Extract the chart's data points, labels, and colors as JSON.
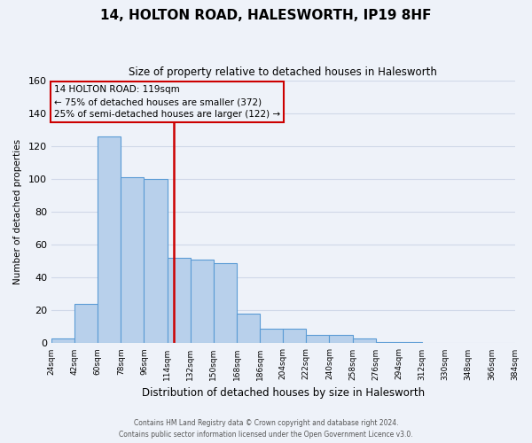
{
  "title": "14, HOLTON ROAD, HALESWORTH, IP19 8HF",
  "subtitle": "Size of property relative to detached houses in Halesworth",
  "xlabel": "Distribution of detached houses by size in Halesworth",
  "ylabel": "Number of detached properties",
  "bin_edges": [
    24,
    42,
    60,
    78,
    96,
    114,
    132,
    150,
    168,
    186,
    204,
    222,
    240,
    258,
    276,
    294,
    312,
    330,
    348,
    366,
    384
  ],
  "bar_heights": [
    3,
    24,
    126,
    101,
    100,
    52,
    51,
    49,
    18,
    9,
    9,
    5,
    5,
    3,
    1,
    1,
    0,
    0,
    0,
    0
  ],
  "bar_color": "#b8d0eb",
  "bar_edge_color": "#5b9bd5",
  "vline_x": 119,
  "vline_color": "#cc0000",
  "annotation_title": "14 HOLTON ROAD: 119sqm",
  "annotation_line1": "← 75% of detached houses are smaller (372)",
  "annotation_line2": "25% of semi-detached houses are larger (122) →",
  "annotation_box_color": "#cc0000",
  "ylim": [
    0,
    160
  ],
  "yticks": [
    0,
    20,
    40,
    60,
    80,
    100,
    120,
    140,
    160
  ],
  "tick_labels": [
    "24sqm",
    "42sqm",
    "60sqm",
    "78sqm",
    "96sqm",
    "114sqm",
    "132sqm",
    "150sqm",
    "168sqm",
    "186sqm",
    "204sqm",
    "222sqm",
    "240sqm",
    "258sqm",
    "276sqm",
    "294sqm",
    "312sqm",
    "330sqm",
    "348sqm",
    "366sqm",
    "384sqm"
  ],
  "footer_line1": "Contains HM Land Registry data © Crown copyright and database right 2024.",
  "footer_line2": "Contains public sector information licensed under the Open Government Licence v3.0.",
  "background_color": "#eef2f9",
  "grid_color": "#d0d8e8"
}
